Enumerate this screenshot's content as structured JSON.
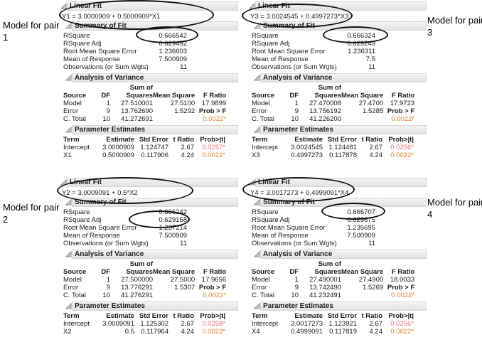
{
  "section_titles": {
    "linear_fit": "Linear Fit",
    "summary": "Summary of Fit",
    "anova": "Analysis of Variance",
    "estimates": "Parameter Estimates"
  },
  "summary_labels": [
    "RSquare",
    "RSquare Adj",
    "Root Mean Square Error",
    "Mean of Response",
    "Observations (or Sum Wgts)"
  ],
  "anova_header": {
    "sum_of": "Sum of",
    "cols": [
      "Source",
      "DF",
      "Squares",
      "Mean Square",
      "F Ratio"
    ]
  },
  "estimates_header": [
    "Term",
    "Estimate",
    "Std Error",
    "t Ratio",
    "Prob>|t|"
  ],
  "colors": {
    "sig_orange": "#e2862a",
    "sig_red": "#ee7272",
    "header_band": "#e8e8e8",
    "ellipse": "#111111"
  },
  "side_labels": [
    {
      "text": "Model for pair 1"
    },
    {
      "text": "Model for pair 3"
    },
    {
      "text": "Model for pair 2"
    },
    {
      "text": "Model for pair 4"
    }
  ],
  "panels": [
    {
      "name": "pair1",
      "equation": "Y1 = 3.0000909 + 0.5000909*X1",
      "summary_values": [
        "0.666542",
        "0.629492",
        "1.236603",
        "7.500909",
        "11"
      ],
      "circled_summary_row": 0,
      "anova_rows": [
        {
          "source": "Model",
          "df": "1",
          "ss": "27.510001",
          "ms": "27.5100",
          "f": "17.9899"
        },
        {
          "source": "Error",
          "df": "9",
          "ss": "13.762690",
          "ms": "1.5292",
          "f": "Prob > F"
        },
        {
          "source": "C. Total",
          "df": "10",
          "ss": "41.272691",
          "ms": "",
          "f": "0.0022*"
        }
      ],
      "estimates_rows": [
        {
          "term": "Intercept",
          "estimate": "3.0000909",
          "std_error": "1.124747",
          "t_ratio": "2.67",
          "prob": "0.0257*"
        },
        {
          "term": "X1",
          "estimate": "0.5000909",
          "std_error": "0.117906",
          "t_ratio": "4.24",
          "prob": "0.0022*"
        }
      ]
    },
    {
      "name": "pair3",
      "equation": "Y3 = 3.0024545 + 0.4997273*X3",
      "summary_values": [
        "0.666324",
        "0.629249",
        "1.236311",
        "7.5",
        "11"
      ],
      "circled_summary_row": 0,
      "anova_rows": [
        {
          "source": "Model",
          "df": "1",
          "ss": "27.470008",
          "ms": "27.4700",
          "f": "17.9723"
        },
        {
          "source": "Error",
          "df": "9",
          "ss": "13.756192",
          "ms": "1.5285",
          "f": "Prob > F"
        },
        {
          "source": "C. Total",
          "df": "10",
          "ss": "41.226200",
          "ms": "",
          "f": "0.0022*"
        }
      ],
      "estimates_rows": [
        {
          "term": "Intercept",
          "estimate": "3.0024545",
          "std_error": "1.124481",
          "t_ratio": "2.67",
          "prob": "0.0256*"
        },
        {
          "term": "X3",
          "estimate": "0.4997273",
          "std_error": "0.117878",
          "t_ratio": "4.24",
          "prob": "0.0022*"
        }
      ]
    },
    {
      "name": "pair2",
      "equation": "Y2 = 3.0009091 + 0.5*X2",
      "summary_values": [
        "0.666242",
        "0.629158",
        "1.237214",
        "7.500909",
        "11"
      ],
      "circled_summary_row": 1,
      "anova_rows": [
        {
          "source": "Model",
          "df": "1",
          "ss": "27.500000",
          "ms": "27.5000",
          "f": "17.9656"
        },
        {
          "source": "Error",
          "df": "9",
          "ss": "13.776291",
          "ms": "1.5307",
          "f": "Prob > F"
        },
        {
          "source": "C. Total",
          "df": "10",
          "ss": "41.276291",
          "ms": "",
          "f": "0.0022*"
        }
      ],
      "estimates_rows": [
        {
          "term": "Intercept",
          "estimate": "3.0009091",
          "std_error": "1.125302",
          "t_ratio": "2.67",
          "prob": "0.0258*"
        },
        {
          "term": "X2",
          "estimate": "0.5",
          "std_error": "0.117964",
          "t_ratio": "4.24",
          "prob": "0.0022*"
        }
      ]
    },
    {
      "name": "pair4",
      "equation": "Y4 = 3.0017273 + 0.4999091*X4",
      "summary_values": [
        "0.666707",
        "0.629675",
        "1.235695",
        "7.500909",
        "11"
      ],
      "circled_summary_row": 0,
      "anova_rows": [
        {
          "source": "Model",
          "df": "1",
          "ss": "27.490001",
          "ms": "27.4900",
          "f": "18.0033"
        },
        {
          "source": "Error",
          "df": "9",
          "ss": "13.742490",
          "ms": "1.5269",
          "f": "Prob > F"
        },
        {
          "source": "C. Total",
          "df": "10",
          "ss": "41.232491",
          "ms": "",
          "f": "0.0022*"
        }
      ],
      "estimates_rows": [
        {
          "term": "Intercept",
          "estimate": "3.0017273",
          "std_error": "1.123921",
          "t_ratio": "2.67",
          "prob": "0.0256*"
        },
        {
          "term": "X4",
          "estimate": "0.4999091",
          "std_error": "0.117819",
          "t_ratio": "4.24",
          "prob": "0.0022*"
        }
      ]
    }
  ]
}
